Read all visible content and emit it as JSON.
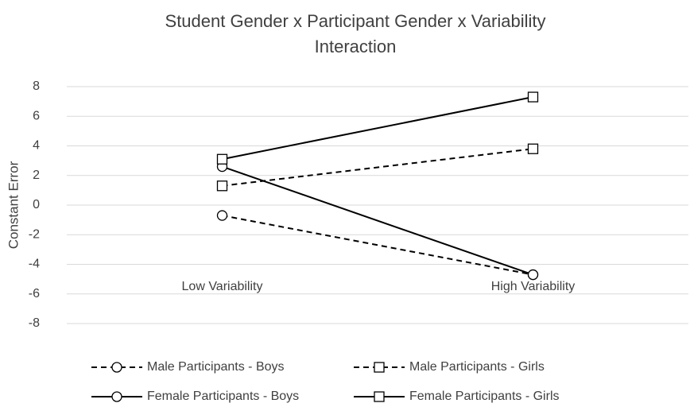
{
  "chart_data": {
    "type": "line",
    "title": "Student Gender x Participant Gender x Variability Interaction",
    "y_label": "Constant Error",
    "categories": [
      "Low Variability",
      "High Variability"
    ],
    "series": [
      {
        "name": "Male Participants - Boys",
        "color": "#000000",
        "dash": "dashed",
        "marker": "circle",
        "values": [
          -0.7,
          -4.7
        ]
      },
      {
        "name": "Male Participants - Girls",
        "color": "#000000",
        "dash": "dashed",
        "marker": "square",
        "values": [
          1.3,
          3.8
        ]
      },
      {
        "name": "Female Participants - Boys",
        "color": "#000000",
        "dash": "solid",
        "marker": "circle",
        "values": [
          2.6,
          -4.7
        ]
      },
      {
        "name": "Female Participants - Girls",
        "color": "#000000",
        "dash": "solid",
        "marker": "square",
        "values": [
          3.1,
          7.3
        ]
      }
    ],
    "ylim": [
      -8,
      8
    ],
    "yticks": [
      -8,
      -6,
      -4,
      -2,
      0,
      2,
      4,
      6,
      8
    ],
    "grid": true
  }
}
